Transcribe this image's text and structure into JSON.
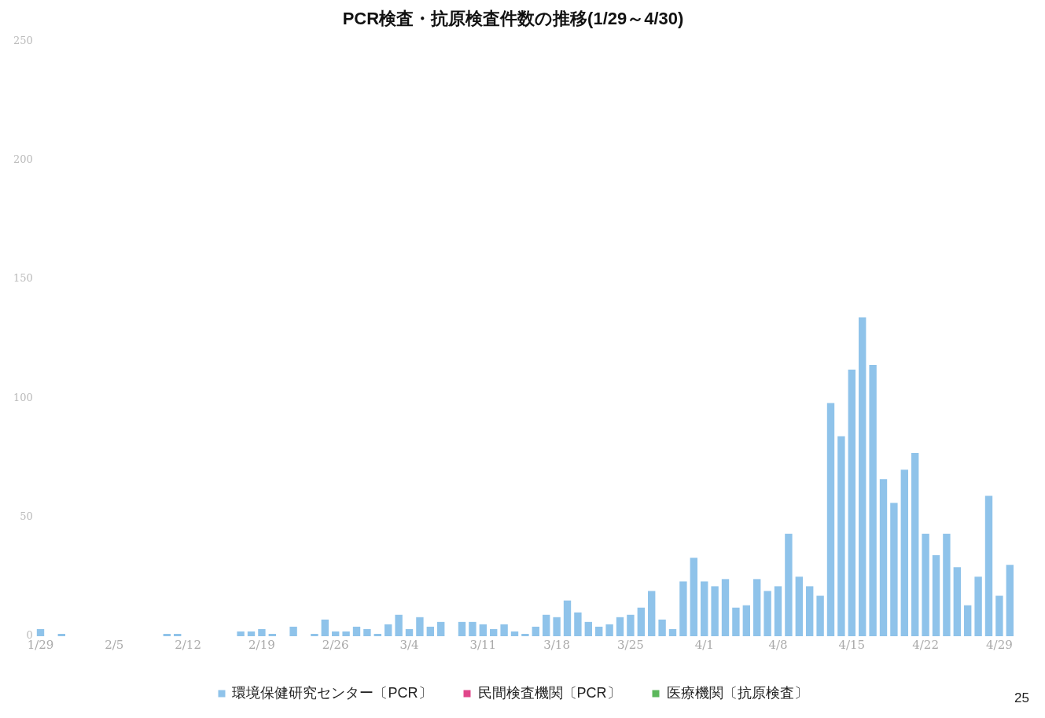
{
  "chart_data": {
    "type": "bar",
    "title": "PCR検査・抗原検査件数の推移(1/29～4/30)",
    "categories": [
      "1/29",
      null,
      null,
      null,
      null,
      null,
      null,
      "2/5",
      null,
      null,
      null,
      null,
      null,
      null,
      "2/12",
      null,
      null,
      null,
      null,
      null,
      null,
      "2/19",
      null,
      null,
      null,
      null,
      null,
      null,
      "2/26",
      null,
      null,
      null,
      null,
      null,
      null,
      "3/4",
      null,
      null,
      null,
      null,
      null,
      null,
      "3/11",
      null,
      null,
      null,
      null,
      null,
      null,
      "3/18",
      null,
      null,
      null,
      null,
      null,
      null,
      "3/25",
      null,
      null,
      null,
      null,
      null,
      null,
      "4/1",
      null,
      null,
      null,
      null,
      null,
      null,
      "4/8",
      null,
      null,
      null,
      null,
      null,
      null,
      "4/15",
      null,
      null,
      null,
      null,
      null,
      null,
      "4/22",
      null,
      null,
      null,
      null,
      null,
      null,
      "4/29",
      null
    ],
    "series": [
      {
        "name": "環境保健研究センター〔PCR〕",
        "color": "#8fc3ea",
        "values": [
          3,
          0,
          1,
          0,
          0,
          0,
          0,
          0,
          0,
          0,
          0,
          0,
          1,
          1,
          0,
          0,
          0,
          0,
          0,
          2,
          2,
          3,
          1,
          0,
          4,
          0,
          1,
          7,
          2,
          2,
          4,
          3,
          1,
          5,
          9,
          3,
          8,
          4,
          6,
          0,
          6,
          6,
          5,
          3,
          5,
          2,
          1,
          4,
          9,
          8,
          15,
          10,
          6,
          4,
          5,
          8,
          9,
          12,
          19,
          7,
          3,
          23,
          33,
          23,
          21,
          24,
          12,
          13,
          24,
          19,
          21,
          43,
          25,
          21,
          17,
          98,
          84,
          112,
          134,
          114,
          66,
          56,
          70,
          77,
          43,
          34,
          43,
          29,
          13,
          25,
          59,
          17,
          30
        ]
      },
      {
        "name": "民間検査機関〔PCR〕",
        "color": "#e0468a",
        "values": [
          0,
          0,
          0,
          0,
          0,
          0,
          0,
          0,
          0,
          0,
          0,
          0,
          0,
          0,
          0,
          0,
          0,
          0,
          0,
          0,
          0,
          0,
          0,
          0,
          0,
          0,
          0,
          0,
          0,
          0,
          0,
          0,
          0,
          0,
          0,
          0,
          0,
          0,
          0,
          0,
          0,
          0,
          0,
          0,
          0,
          0,
          0,
          0,
          0,
          0,
          0,
          0,
          0,
          0,
          0,
          0,
          0,
          0,
          0,
          0,
          0,
          0,
          0,
          0,
          0,
          0,
          0,
          0,
          0,
          0,
          0,
          0,
          0,
          0,
          0,
          0,
          0,
          0,
          0,
          0,
          0,
          0,
          0,
          0,
          0,
          0,
          0,
          0,
          0,
          0,
          0,
          0,
          0
        ]
      },
      {
        "name": "医療機関〔抗原検査〕",
        "color": "#5cb85c",
        "values": [
          0,
          0,
          0,
          0,
          0,
          0,
          0,
          0,
          0,
          0,
          0,
          0,
          0,
          0,
          0,
          0,
          0,
          0,
          0,
          0,
          0,
          0,
          0,
          0,
          0,
          0,
          0,
          0,
          0,
          0,
          0,
          0,
          0,
          0,
          0,
          0,
          0,
          0,
          0,
          0,
          0,
          0,
          0,
          0,
          0,
          0,
          0,
          0,
          0,
          0,
          0,
          0,
          0,
          0,
          0,
          0,
          0,
          0,
          0,
          0,
          0,
          0,
          0,
          0,
          0,
          0,
          0,
          0,
          0,
          0,
          0,
          0,
          0,
          0,
          0,
          0,
          0,
          0,
          0,
          0,
          0,
          0,
          0,
          0,
          0,
          0,
          0,
          0,
          0,
          0,
          0,
          0,
          0
        ]
      }
    ],
    "ylim": [
      0,
      250
    ],
    "yticks": [
      0,
      50,
      100,
      150,
      200,
      250
    ],
    "grid": false,
    "legend": "bottom",
    "annotations": [
      "25"
    ]
  }
}
